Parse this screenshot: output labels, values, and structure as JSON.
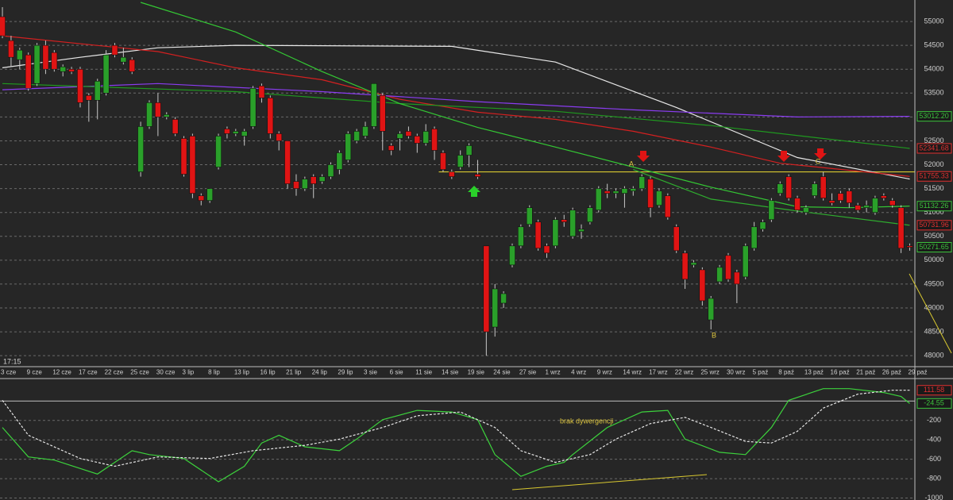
{
  "chart_data": [
    {
      "type": "candlestick",
      "categories": [
        "3 cze",
        null,
        null,
        "9 cze",
        null,
        null,
        "12 cze",
        null,
        null,
        "17 cze",
        null,
        null,
        "22 cze",
        null,
        null,
        "25 cze",
        null,
        null,
        "30 cze",
        null,
        null,
        "3 lip",
        null,
        null,
        "8 lip",
        null,
        null,
        "13 lip",
        null,
        null,
        "16 lip",
        null,
        null,
        "21 lip",
        null,
        null,
        "24 lip",
        null,
        null,
        "29 lip",
        null,
        null,
        "3 sie",
        null,
        null,
        "6 sie",
        null,
        null,
        "11 sie",
        null,
        null,
        "14 sie",
        null,
        null,
        "19 sie",
        null,
        null,
        "24 sie",
        null,
        null,
        "27 sie",
        null,
        null,
        "1 wrz",
        null,
        null,
        "4 wrz",
        null,
        null,
        "9 wrz",
        null,
        null,
        "14 wrz",
        null,
        null,
        "17 wrz",
        null,
        null,
        "22 wrz",
        null,
        null,
        "25 wrz",
        null,
        null,
        "30 wrz",
        null,
        null,
        "5 paź",
        null,
        null,
        "8 paź",
        null,
        null,
        "13 paź",
        null,
        null,
        "16 paź",
        null,
        null,
        "21 paź",
        null,
        null,
        "26 paź",
        null,
        null,
        "29 paź"
      ],
      "open": [
        55100,
        54600,
        54200,
        54300,
        53700,
        54500,
        54350,
        53950,
        54000,
        54000,
        53450,
        53350,
        53500,
        54500,
        54150,
        54200,
        51850,
        52800,
        53300,
        53000,
        52950,
        52550,
        52600,
        51350,
        51250,
        51950,
        52750,
        52650,
        52600,
        52800,
        53650,
        53400,
        52650,
        52500,
        51650,
        51500,
        51750,
        51650,
        51750,
        51900,
        52100,
        52500,
        52600,
        52800,
        53450,
        52400,
        52550,
        52700,
        52600,
        52450,
        52750,
        52250,
        51850,
        51950,
        52200,
        51800,
        50300,
        48600,
        49100,
        49900,
        50300,
        50750,
        50800,
        50300,
        50300,
        50850,
        50500,
        50600,
        50800,
        51050,
        51450,
        51400,
        51400,
        51450,
        51500,
        51700,
        51150,
        51350,
        50700,
        50150,
        49900,
        49800,
        48750,
        49550,
        50100,
        49750,
        49650,
        50250,
        50650,
        50850,
        51400,
        51750,
        51300,
        51000,
        51350,
        51750,
        51250,
        51400,
        51450,
        51150,
        51100,
        51000,
        51350,
        51250,
        51100,
        50300
      ],
      "high": [
        55300,
        54700,
        54450,
        54350,
        54550,
        54600,
        54400,
        54100,
        54050,
        54050,
        53500,
        53800,
        54400,
        54550,
        54450,
        54250,
        52900,
        53350,
        53500,
        53100,
        53000,
        52600,
        52650,
        51400,
        51500,
        52650,
        52800,
        52750,
        52750,
        53650,
        53700,
        53450,
        52700,
        52500,
        51800,
        51750,
        51800,
        51800,
        52050,
        52300,
        52700,
        52750,
        52900,
        53700,
        53500,
        52450,
        52700,
        52800,
        52650,
        52850,
        52800,
        52300,
        51900,
        52300,
        52450,
        52100,
        50300,
        49500,
        49350,
        50350,
        50750,
        51150,
        50850,
        50350,
        50900,
        50950,
        51100,
        50750,
        51150,
        51550,
        51600,
        51500,
        51550,
        51550,
        51800,
        51750,
        51500,
        51400,
        50750,
        50200,
        50000,
        49850,
        49250,
        49900,
        50150,
        49800,
        50350,
        50800,
        50850,
        51300,
        51650,
        51800,
        51350,
        51150,
        51650,
        51850,
        51400,
        51450,
        51500,
        51200,
        51250,
        51350,
        51400,
        51300,
        51150,
        50350
      ],
      "low": [
        54650,
        54050,
        54000,
        53550,
        53650,
        53900,
        53950,
        53850,
        53900,
        53200,
        52900,
        52950,
        53450,
        54250,
        54100,
        53900,
        51750,
        52750,
        52600,
        52950,
        52600,
        51750,
        51300,
        51150,
        51200,
        51900,
        52550,
        52600,
        52400,
        52750,
        53300,
        52550,
        52300,
        51500,
        51350,
        51450,
        51300,
        51600,
        51700,
        51800,
        52050,
        52450,
        52550,
        52750,
        52300,
        52200,
        52300,
        52550,
        52250,
        52400,
        52100,
        51850,
        51700,
        51900,
        51950,
        51700,
        48000,
        48400,
        49000,
        49850,
        50250,
        50700,
        50200,
        50050,
        50250,
        50700,
        50450,
        50450,
        50750,
        51000,
        51300,
        51300,
        51100,
        51350,
        51450,
        50900,
        51100,
        50850,
        50150,
        49400,
        49850,
        49050,
        48550,
        49500,
        49550,
        49100,
        49600,
        50200,
        50600,
        50800,
        51350,
        51250,
        51000,
        50950,
        51300,
        51250,
        51150,
        51200,
        51100,
        51000,
        51000,
        50950,
        51250,
        51100,
        50150,
        50200
      ],
      "close": [
        54700,
        54250,
        54400,
        53600,
        54500,
        54000,
        54000,
        54050,
        53950,
        53300,
        53350,
        53750,
        54300,
        54300,
        54250,
        53950,
        52800,
        53300,
        53000,
        53050,
        52650,
        51800,
        51400,
        51250,
        51500,
        52600,
        52650,
        52700,
        52700,
        53600,
        53400,
        52650,
        52500,
        51600,
        51500,
        51700,
        51600,
        51750,
        52000,
        52250,
        52650,
        52700,
        52800,
        53700,
        52700,
        52300,
        52650,
        52600,
        52450,
        52700,
        52300,
        51900,
        51750,
        52200,
        52400,
        51750,
        48500,
        49400,
        49300,
        50300,
        50700,
        51100,
        50250,
        50150,
        50850,
        50800,
        51050,
        50650,
        51100,
        51500,
        51400,
        51450,
        51500,
        51500,
        51750,
        51100,
        51450,
        50900,
        50200,
        49600,
        49950,
        49150,
        49200,
        49850,
        49600,
        49500,
        50300,
        50700,
        50800,
        51250,
        51600,
        51300,
        51050,
        51100,
        51600,
        51300,
        51200,
        51250,
        51200,
        51050,
        51150,
        51300,
        51300,
        51150,
        50250,
        50271.65
      ],
      "close_label": "50271.65",
      "close_label_color": "#3cc23c",
      "up_color": "#2aa02a",
      "down_color": "#e01414",
      "wick_color": "#c8c8c8",
      "lines": [
        {
          "color": "#e8e8e8",
          "x": [
            0,
            9,
            18,
            27,
            52,
            64,
            78,
            88,
            92,
            105
          ],
          "values": [
            54030,
            54250,
            54450,
            54500,
            54480,
            54150,
            53200,
            52450,
            52150,
            51700
          ]
        },
        {
          "color": "#d42020",
          "x": [
            0,
            18,
            27,
            37,
            46,
            55,
            64,
            73,
            82,
            90,
            105
          ],
          "values": [
            54700,
            54370,
            54030,
            53780,
            53370,
            53100,
            52950,
            52700,
            52370,
            52030,
            51755.33
          ],
          "label": "51755.33",
          "label_color": "#e03030"
        },
        {
          "color": "#8a3cf0",
          "x": [
            0,
            18,
            37,
            55,
            73,
            92,
            105
          ],
          "values": [
            53570,
            53700,
            53530,
            53320,
            53150,
            53000,
            53012.2
          ],
          "label": "53012.20",
          "label_color": "#3cc23c"
        },
        {
          "color": "#1f9a1f",
          "x": [
            0,
            27,
            46,
            64,
            82,
            105
          ],
          "values": [
            53700,
            53530,
            53280,
            53120,
            52820,
            52341.68
          ],
          "label": "52341.68",
          "label_color": "#e03030"
        },
        {
          "color": "#34c834",
          "x": [
            16,
            27,
            37,
            46,
            55,
            64,
            73,
            82,
            92,
            98,
            105
          ],
          "values": [
            55400,
            54780,
            53950,
            53280,
            52780,
            52370,
            51950,
            51530,
            51120,
            51100,
            51132.26
          ],
          "label": "51132.26",
          "label_color": "#3cc23c"
        },
        {
          "color": "#2fae2f",
          "x": [
            73,
            82,
            92,
            105
          ],
          "values": [
            51900,
            51280,
            51030,
            50731.96
          ],
          "label": "50731.96",
          "label_color": "#e03030"
        }
      ],
      "hline": {
        "value": 51850,
        "color": "#d8c830"
      },
      "xlim": [
        -0.28,
        105.6
      ],
      "ylim": [
        47770,
        55450
      ],
      "yticks": [
        48000,
        48500,
        49000,
        49500,
        50000,
        50500,
        51000,
        51500,
        52000,
        52500,
        53000,
        53500,
        54000,
        54500,
        55000
      ],
      "grid": true,
      "annotations": [
        "A",
        "B",
        "C"
      ],
      "time_label": "17:15"
    },
    {
      "type": "line",
      "series": [
        {
          "color": "#3cd23c",
          "dashed": false,
          "x": [
            0,
            3,
            6,
            11,
            15,
            17,
            21,
            25,
            28,
            30,
            32,
            35,
            39,
            41,
            44,
            48,
            52,
            55,
            57,
            60,
            63,
            65,
            66,
            70,
            74,
            77,
            79,
            83,
            86,
            89,
            91,
            95,
            98,
            102,
            104,
            105
          ],
          "values": [
            -272,
            -576,
            -608,
            -752,
            -512,
            -552,
            -592,
            -832,
            -672,
            -432,
            -352,
            -472,
            -512,
            -392,
            -192,
            -96,
            -112,
            -192,
            -552,
            -776,
            -672,
            -632,
            -552,
            -272,
            -112,
            -96,
            -392,
            -528,
            -552,
            -272,
            8,
            128,
            128,
            88,
            48,
            -24.55
          ],
          "label": "-24.55",
          "label_color": "#3cc23c"
        },
        {
          "color": "#e8e8e8",
          "dashed": true,
          "x": [
            0,
            3,
            9,
            13,
            18,
            24,
            29,
            35,
            39,
            44,
            48,
            53,
            57,
            60,
            64,
            68,
            71,
            75,
            79,
            82,
            86,
            89,
            92,
            95,
            99,
            103,
            105
          ],
          "values": [
            8,
            -352,
            -592,
            -672,
            -576,
            -592,
            -512,
            -456,
            -392,
            -272,
            -152,
            -112,
            -272,
            -512,
            -632,
            -552,
            -392,
            -232,
            -168,
            -272,
            -416,
            -432,
            -312,
            -72,
            72,
            112,
            111.58
          ],
          "label": "111.58",
          "label_color": "#e03030"
        }
      ],
      "hline": {
        "value": 0,
        "color": "#a0a0a0"
      },
      "xlim": [
        -0.28,
        105.6
      ],
      "ylim": [
        -1020,
        224
      ],
      "yticks": [
        -200,
        -400,
        -600,
        -800,
        -1000
      ],
      "grid": true,
      "annotation": "brak dywergencji"
    }
  ]
}
